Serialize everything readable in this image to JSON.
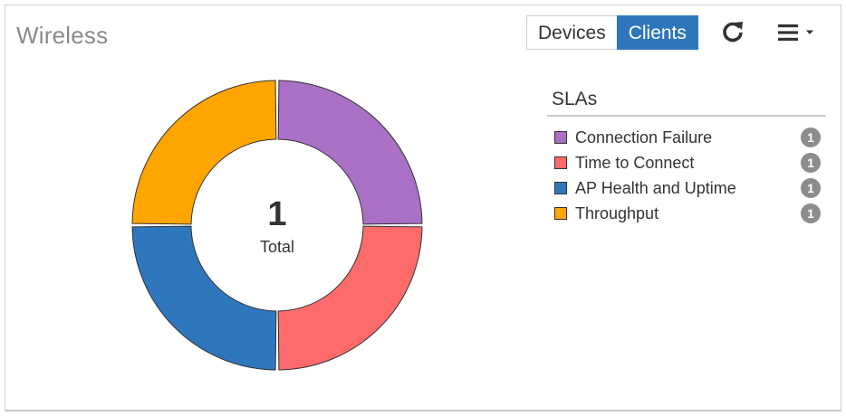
{
  "header": {
    "title": "Wireless",
    "toggle": [
      {
        "label": "Devices",
        "active": false
      },
      {
        "label": "Clients",
        "active": true
      }
    ],
    "refresh_icon": "refresh-icon",
    "menu_icon": "hamburger-menu-icon"
  },
  "chart_data": {
    "type": "pie",
    "donut": true,
    "center_value": "1",
    "center_label": "Total",
    "legend_title": "SLAs",
    "categories": [
      "Connection Failure",
      "Time to Connect",
      "AP Health and Uptime",
      "Throughput"
    ],
    "values": [
      1,
      1,
      1,
      1
    ],
    "colors": [
      "#a970c6",
      "#ff6b6b",
      "#2f77bd",
      "#ffa500"
    ]
  },
  "legend": {
    "title": "SLAs",
    "items": [
      {
        "label": "Connection Failure",
        "count": "1",
        "color": "#a970c6"
      },
      {
        "label": "Time to Connect",
        "count": "1",
        "color": "#ff6b6b"
      },
      {
        "label": "AP Health and Uptime",
        "count": "1",
        "color": "#2f77bd"
      },
      {
        "label": "Throughput",
        "count": "1",
        "color": "#ffa500"
      }
    ]
  }
}
